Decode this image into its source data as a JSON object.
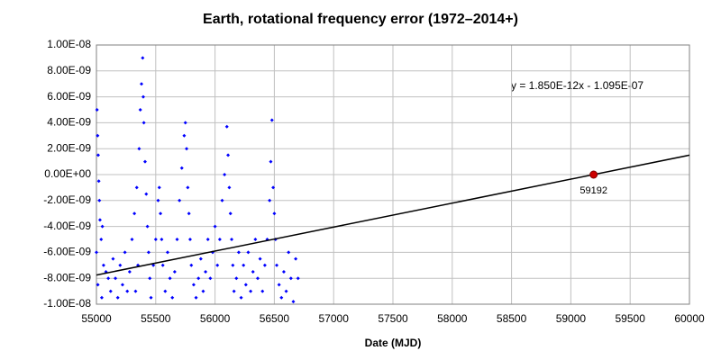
{
  "chart_data": {
    "type": "scatter",
    "title": "Earth, rotational frequency error (1972–2014+)",
    "x_label": "Date (MJD)",
    "xlim": [
      55000,
      60000
    ],
    "xticks": [
      55000,
      55500,
      56000,
      56500,
      57000,
      57500,
      58000,
      58500,
      59000,
      59500,
      60000
    ],
    "ylim": [
      -1e-08,
      1e-08
    ],
    "yticks": [
      {
        "value": -1e-08,
        "label": "-1.00E-08"
      },
      {
        "value": -8e-09,
        "label": "-8.00E-09"
      },
      {
        "value": -6e-09,
        "label": "-6.00E-09"
      },
      {
        "value": -4e-09,
        "label": "-4.00E-09"
      },
      {
        "value": -2e-09,
        "label": "-2.00E-09"
      },
      {
        "value": 0,
        "label": "0.00E+00"
      },
      {
        "value": 2e-09,
        "label": "2.00E-09"
      },
      {
        "value": 4e-09,
        "label": "4.00E-09"
      },
      {
        "value": 6e-09,
        "label": "6.00E-09"
      },
      {
        "value": 8e-09,
        "label": "8.00E-09"
      },
      {
        "value": 1e-08,
        "label": "1.00E-08"
      }
    ],
    "grid": true,
    "series": [
      {
        "color": "#0000ff",
        "x": [
          55005,
          55010,
          55015,
          55020,
          55025,
          55030,
          55000,
          55040,
          55050,
          55060,
          55012,
          55045,
          55080,
          55100,
          55120,
          55140,
          55160,
          55180,
          55200,
          55220,
          55240,
          55260,
          55280,
          55300,
          55320,
          55340,
          55360,
          55370,
          55380,
          55390,
          55395,
          55400,
          55410,
          55420,
          55430,
          55440,
          55450,
          55460,
          55350,
          55330,
          55480,
          55500,
          55520,
          55530,
          55540,
          55550,
          55560,
          55580,
          55600,
          55620,
          55640,
          55660,
          55680,
          55700,
          55720,
          55740,
          55750,
          55760,
          55770,
          55780,
          55790,
          55800,
          55820,
          55840,
          55860,
          55880,
          55900,
          55920,
          55940,
          55960,
          55980,
          56000,
          56020,
          56040,
          56060,
          56080,
          56100,
          56110,
          56120,
          56130,
          56140,
          56150,
          56160,
          56180,
          56200,
          56220,
          56240,
          56260,
          56280,
          56300,
          56320,
          56340,
          56360,
          56380,
          56400,
          56420,
          56440,
          56460,
          56470,
          56480,
          56490,
          56500,
          56510,
          56520,
          56540,
          56560,
          56580,
          56600,
          56620,
          56640,
          56660,
          56680,
          56700
        ],
        "values": [
          5e-09,
          3e-09,
          1.5e-09,
          -5e-10,
          -2e-09,
          -3.5e-09,
          -6e-09,
          -5e-09,
          -4e-09,
          -7e-09,
          -8.5e-09,
          -9.5e-09,
          -7.5e-09,
          -8e-09,
          -9e-09,
          -6.5e-09,
          -8e-09,
          -9.5e-09,
          -7e-09,
          -8.5e-09,
          -6e-09,
          -9e-09,
          -7.5e-09,
          -5e-09,
          -3e-09,
          -1e-09,
          2e-09,
          5e-09,
          7e-09,
          9e-09,
          6e-09,
          4e-09,
          1e-09,
          -1.5e-09,
          -4e-09,
          -6e-09,
          -8e-09,
          -9.5e-09,
          -7e-09,
          -9e-09,
          -7e-09,
          -5e-09,
          -2e-09,
          -1e-09,
          -3e-09,
          -5e-09,
          -7e-09,
          -9e-09,
          -6e-09,
          -8e-09,
          -9.5e-09,
          -7.5e-09,
          -5e-09,
          -2e-09,
          5e-10,
          3e-09,
          4e-09,
          2e-09,
          -1e-09,
          -3e-09,
          -5e-09,
          -7e-09,
          -8.5e-09,
          -9.5e-09,
          -8e-09,
          -6.5e-09,
          -9e-09,
          -7.5e-09,
          -5e-09,
          -8e-09,
          -6e-09,
          -4e-09,
          -7e-09,
          -5e-09,
          -2e-09,
          0,
          3.7e-09,
          1.5e-09,
          -1e-09,
          -3e-09,
          -5e-09,
          -7e-09,
          -9e-09,
          -8e-09,
          -6e-09,
          -9.5e-09,
          -7e-09,
          -8.5e-09,
          -6e-09,
          -9e-09,
          -7.5e-09,
          -5e-09,
          -8e-09,
          -6.5e-09,
          -9e-09,
          -7e-09,
          -5e-09,
          -2e-09,
          1e-09,
          4.2e-09,
          -1e-09,
          -3e-09,
          -5e-09,
          -7e-09,
          -8.5e-09,
          -9.5e-09,
          -7.5e-09,
          -9e-09,
          -6e-09,
          -8e-09,
          -9.8e-09,
          -6.5e-09,
          -8e-09
        ]
      }
    ],
    "trendline": {
      "equation": "y = 1.850E-12x - 1.095E-07",
      "color": "#000000",
      "x": [
        55000,
        60000
      ],
      "values": [
        -7.75e-09,
        1.5e-09
      ]
    },
    "highlight": {
      "x": 59192,
      "value": 0,
      "color": "#cc0000"
    }
  }
}
